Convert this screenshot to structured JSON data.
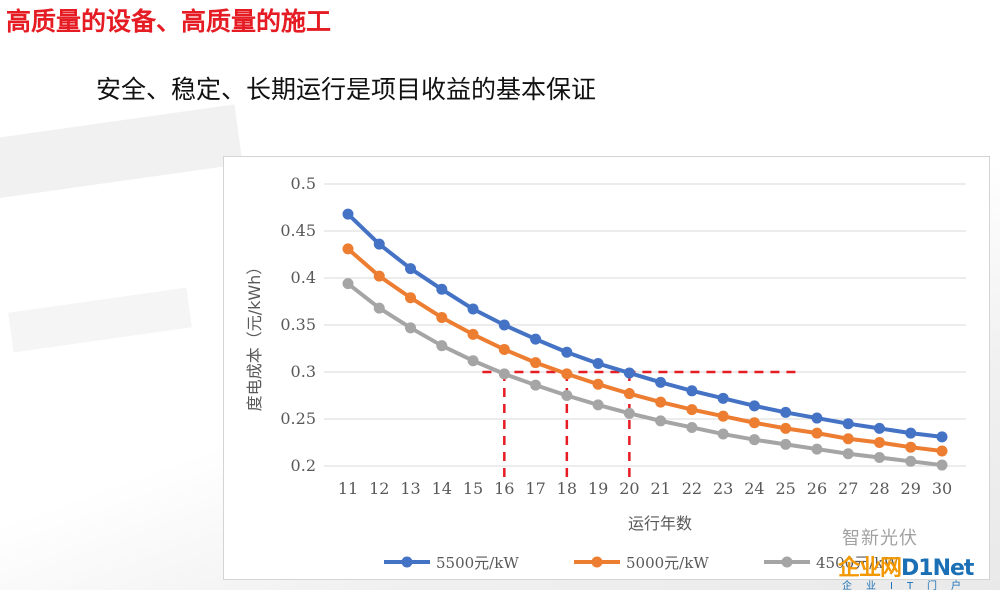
{
  "slide": {
    "title": "高质量的设备、高质量的施工",
    "subtitle": "安全、稳定、长期运行是项目收益的基本保证"
  },
  "watermark": {
    "line1": "智新光伏",
    "line2a": "企业网",
    "line2b": "D1Net",
    "line3": "企业IT门户"
  },
  "colors": {
    "title": "#e51c23",
    "series_5500": "#4472c4",
    "series_5000": "#ed7d31",
    "series_4500": "#a5a5a5",
    "reference": "#e51c23"
  },
  "chart_data": {
    "type": "line",
    "title": "",
    "xlabel": "运行年数",
    "ylabel": "度电成本（元/kWh）",
    "ylim": [
      0.2,
      0.5
    ],
    "yticks": [
      "0.5",
      "0.45",
      "0.4",
      "0.35",
      "0.3",
      "0.25",
      "0.2"
    ],
    "ytick_values": [
      0.5,
      0.45,
      0.4,
      0.35,
      0.3,
      0.25,
      0.2
    ],
    "x": [
      11,
      12,
      13,
      14,
      15,
      16,
      17,
      18,
      19,
      20,
      21,
      22,
      23,
      24,
      25,
      26,
      27,
      28,
      29,
      30
    ],
    "grid": true,
    "legend_position": "bottom",
    "series": [
      {
        "name": "5500元/kW",
        "color": "#4472c4",
        "values": [
          0.468,
          0.436,
          0.41,
          0.388,
          0.367,
          0.35,
          0.335,
          0.321,
          0.309,
          0.299,
          0.289,
          0.28,
          0.272,
          0.264,
          0.257,
          0.251,
          0.245,
          0.24,
          0.235,
          0.231
        ]
      },
      {
        "name": "5000元/kW",
        "color": "#ed7d31",
        "values": [
          0.431,
          0.402,
          0.379,
          0.358,
          0.34,
          0.324,
          0.31,
          0.298,
          0.287,
          0.277,
          0.268,
          0.26,
          0.253,
          0.246,
          0.24,
          0.235,
          0.229,
          0.225,
          0.22,
          0.216
        ]
      },
      {
        "name": "4500元/kW",
        "color": "#a5a5a5",
        "values": [
          0.394,
          0.368,
          0.347,
          0.328,
          0.312,
          0.298,
          0.286,
          0.275,
          0.265,
          0.256,
          0.248,
          0.241,
          0.234,
          0.228,
          0.223,
          0.218,
          0.213,
          0.209,
          0.205,
          0.201
        ]
      }
    ],
    "reference_lines": {
      "horizontal_y": 0.3,
      "horizontal_x_range": [
        15.3,
        25.5
      ],
      "vertical_x": [
        16,
        18,
        20
      ]
    }
  }
}
